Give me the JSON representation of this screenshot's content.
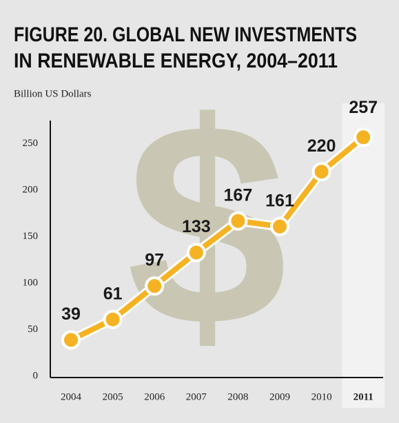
{
  "chart_data": {
    "type": "line",
    "title_lines": [
      "FIGURE 20. GLOBAL NEW INVESTMENTS",
      "IN RENEWABLE ENERGY, 2004–2011"
    ],
    "y_label": "Billion US Dollars",
    "watermark": "$",
    "categories": [
      "2004",
      "2005",
      "2006",
      "2007",
      "2008",
      "2009",
      "2010",
      "2011"
    ],
    "values": [
      39,
      61,
      97,
      133,
      167,
      161,
      220,
      257
    ],
    "color": "#f5b324",
    "highlight_index": 7,
    "ylim": [
      0,
      275
    ],
    "yticks": [
      0,
      50,
      100,
      150,
      200,
      250
    ],
    "grid": false
  }
}
